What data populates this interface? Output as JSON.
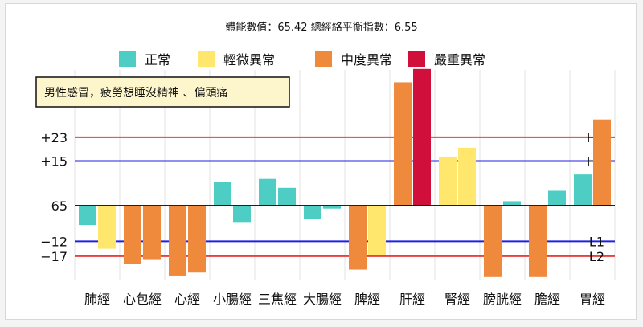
{
  "chart_data": {
    "type": "bar",
    "title": "體能數值：65.42 總經絡平衡指數：6.55",
    "legend": [
      {
        "label": "正常",
        "color": "#4ecdc4"
      },
      {
        "label": "輕微異常",
        "color": "#ffe66d"
      },
      {
        "label": "中度異常",
        "color": "#ef8a3c"
      },
      {
        "label": "嚴重異常",
        "color": "#d0103a"
      }
    ],
    "note": "男性感冒，疲勞想睡沒精神 、偏頭痛",
    "baseline_label": "65",
    "reference_lines": [
      {
        "value": 23,
        "label": "+23",
        "tag": "H2",
        "color": "#e8413c"
      },
      {
        "value": 15,
        "label": "+15",
        "tag": "H1",
        "color": "#2020e0"
      },
      {
        "value": -12,
        "label": "−12",
        "tag": "L1",
        "color": "#2020e0"
      },
      {
        "value": -17,
        "label": "−17",
        "tag": "L2",
        "color": "#e8413c"
      }
    ],
    "ylim": [
      -24,
      46
    ],
    "categories": [
      "肺經",
      "心包經",
      "心經",
      "小腸經",
      "三焦經",
      "大腸經",
      "脾經",
      "肝經",
      "腎經",
      "膀胱經",
      "膽經",
      "胃經"
    ],
    "bars": [
      {
        "cat": 0,
        "value": -6.5,
        "level": 0
      },
      {
        "cat": 0,
        "value": -14.5,
        "level": 1
      },
      {
        "cat": 1,
        "value": -19.5,
        "level": 2
      },
      {
        "cat": 1,
        "value": -18,
        "level": 2
      },
      {
        "cat": 2,
        "value": -23.5,
        "level": 2
      },
      {
        "cat": 2,
        "value": -22.5,
        "level": 2
      },
      {
        "cat": 3,
        "value": 8,
        "level": 0
      },
      {
        "cat": 3,
        "value": -5.5,
        "level": 0
      },
      {
        "cat": 4,
        "value": 9,
        "level": 0
      },
      {
        "cat": 4,
        "value": 6,
        "level": 0
      },
      {
        "cat": 5,
        "value": -4.5,
        "level": 0
      },
      {
        "cat": 5,
        "value": -1,
        "level": 0
      },
      {
        "cat": 6,
        "value": -21.5,
        "level": 2
      },
      {
        "cat": 6,
        "value": -16.5,
        "level": 1
      },
      {
        "cat": 7,
        "value": 41.5,
        "level": 2
      },
      {
        "cat": 7,
        "value": 46,
        "level": 3
      },
      {
        "cat": 8,
        "value": 16.5,
        "level": 1
      },
      {
        "cat": 8,
        "value": 19.5,
        "level": 1
      },
      {
        "cat": 9,
        "value": -24,
        "level": 2
      },
      {
        "cat": 9,
        "value": 1.5,
        "level": 0
      },
      {
        "cat": 10,
        "value": -24,
        "level": 2
      },
      {
        "cat": 10,
        "value": 5,
        "level": 0
      },
      {
        "cat": 11,
        "value": 10.5,
        "level": 0
      },
      {
        "cat": 11,
        "value": 29,
        "level": 2
      }
    ]
  }
}
